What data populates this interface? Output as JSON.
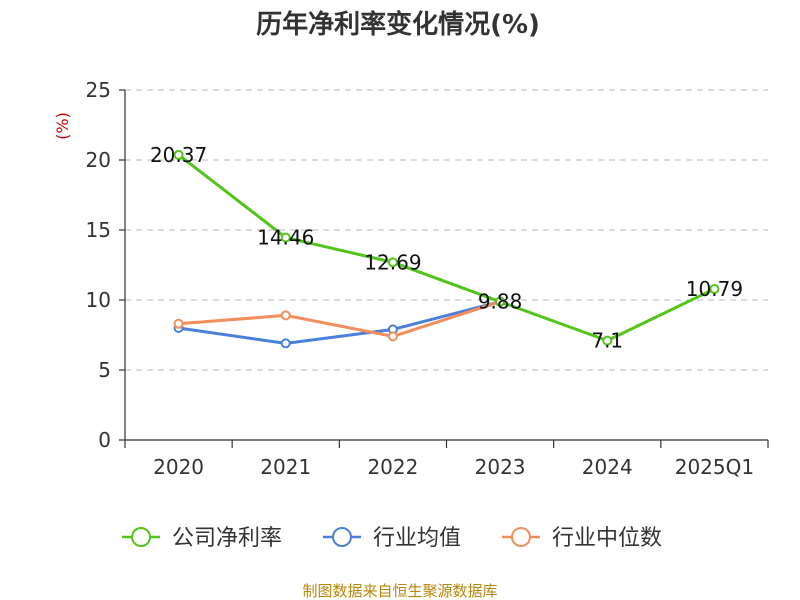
{
  "chart_data": {
    "type": "line",
    "title": "历年净利率变化情况(%)",
    "ylabel": "(%)",
    "categories": [
      "2020",
      "2021",
      "2022",
      "2023",
      "2024",
      "2025Q1"
    ],
    "yticks": [
      "0",
      "5",
      "10",
      "15",
      "20",
      "25"
    ],
    "ylim": [
      0,
      25
    ],
    "grid": "horizontal-dashed",
    "legend_position": "bottom",
    "series": [
      {
        "name": "公司净利率",
        "color": "#52c41a",
        "values": [
          20.37,
          14.46,
          12.69,
          9.88,
          7.1,
          10.79
        ],
        "labels": [
          "20.37",
          "14.46",
          "12.69",
          "9.88",
          "7.1",
          "10.79"
        ]
      },
      {
        "name": "行业均值",
        "color": "#4a7fdc",
        "values": [
          8.0,
          6.9,
          7.9,
          9.88,
          null,
          null
        ]
      },
      {
        "name": "行业中位数",
        "color": "#f28e5c",
        "values": [
          8.3,
          8.9,
          7.4,
          9.88,
          null,
          null
        ]
      }
    ]
  },
  "source_text": "制图数据来自恒生聚源数据库"
}
